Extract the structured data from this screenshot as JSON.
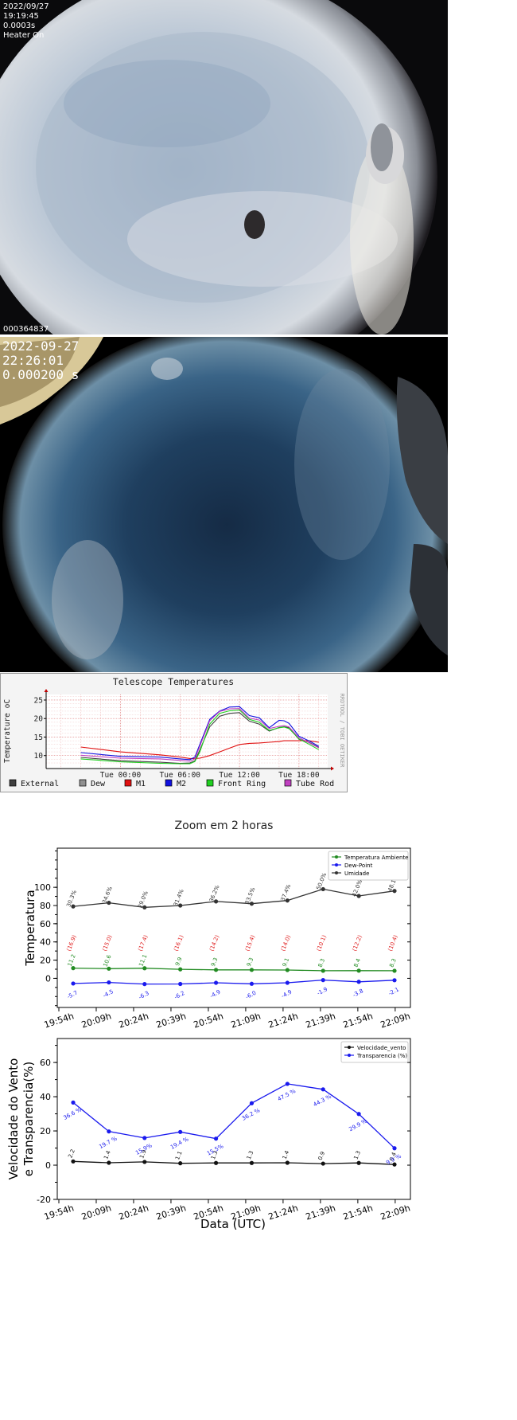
{
  "camera1": {
    "date": "2022/09/27",
    "time": "19:19:45",
    "exposure": "0.0003s",
    "status": "Heater On",
    "frame_id": "000364837"
  },
  "camera2": {
    "date": "2022-09-27",
    "time": "22:26:01",
    "exposure": "0.000200 s"
  },
  "chart_data": [
    {
      "type": "line",
      "title": "Telescope Temperatures",
      "ylabel": "Temperature oC",
      "side_text": "RRDTOOL / TOBI OETIKER",
      "xticks": [
        "Tue 00:00",
        "Tue 06:00",
        "Tue 12:00",
        "Tue 18:00"
      ],
      "yticks": [
        10,
        15,
        20,
        25
      ],
      "ylim": [
        6.5,
        26.5
      ],
      "x_hours": [
        -4,
        0,
        4,
        6,
        7,
        7.5,
        8,
        9,
        10,
        11,
        12,
        13,
        14,
        15,
        16,
        16.5,
        17,
        18,
        19,
        20
      ],
      "series": [
        {
          "name": "External",
          "color": "#404040",
          "values": [
            9.5,
            8.6,
            8.2,
            7.9,
            8.0,
            8.6,
            11.5,
            17.8,
            20.6,
            21.4,
            21.6,
            19.3,
            18.5,
            16.6,
            17.6,
            17.8,
            17.5,
            14.4,
            13.6,
            12.2
          ]
        },
        {
          "name": "Dew",
          "color": "#909090",
          "values": [
            null,
            null,
            null,
            null,
            null,
            null,
            null,
            null,
            null,
            null,
            null,
            null,
            null,
            null,
            null,
            null,
            null,
            null,
            null,
            null
          ]
        },
        {
          "name": "M1",
          "color": "#e01010",
          "values": [
            12.3,
            11.0,
            10.2,
            9.6,
            9.2,
            9.2,
            9.3,
            10.0,
            11.0,
            12.0,
            13.0,
            13.3,
            13.4,
            13.6,
            13.8,
            14.0,
            14.0,
            14.0,
            14.0,
            13.6
          ]
        },
        {
          "name": "M2",
          "color": "#1010e0",
          "values": [
            10.8,
            9.8,
            9.6,
            9.1,
            8.9,
            9.6,
            13.0,
            19.8,
            22.0,
            23.1,
            23.2,
            20.8,
            20.2,
            17.5,
            19.5,
            19.4,
            18.7,
            15.2,
            14.0,
            12.5
          ]
        },
        {
          "name": "Front Ring",
          "color": "#20d020",
          "values": [
            9.1,
            8.3,
            7.9,
            7.8,
            7.8,
            8.4,
            11.0,
            18.5,
            21.4,
            22.1,
            22.3,
            19.8,
            19.0,
            16.8,
            17.5,
            17.7,
            17.3,
            14.5,
            13.1,
            11.6
          ]
        },
        {
          "name": "Tube Rod",
          "color": "#c040c0",
          "values": [
            10.1,
            9.3,
            9.1,
            8.7,
            8.5,
            9.1,
            12.5,
            19.4,
            21.9,
            22.6,
            22.7,
            20.1,
            19.6,
            17.3,
            17.9,
            18.1,
            17.7,
            14.8,
            13.5,
            12.1
          ]
        }
      ]
    },
    {
      "type": "line",
      "title": "Zoom em 2 horas",
      "ylabel": "Temperatura",
      "categories": [
        "19:54h",
        "20:09h",
        "20:24h",
        "20:39h",
        "20:54h",
        "21:09h",
        "21:24h",
        "21:39h",
        "21:54h",
        "22:09h"
      ],
      "x": [
        "19:59h",
        "20:14h",
        "20:29h",
        "20:44h",
        "20:59h",
        "21:14h",
        "21:29h",
        "21:44h",
        "21:59h",
        "22:14h"
      ],
      "ylim": [
        -32,
        143
      ],
      "yticks": [
        0,
        20,
        40,
        60,
        80,
        100
      ],
      "legend": "top-right",
      "series": [
        {
          "name": "Temperatura Ambiente",
          "color": "#228b22",
          "values": [
            11.2,
            10.6,
            11.1,
            9.9,
            9.3,
            9.3,
            9.1,
            8.3,
            8.4,
            8.3
          ],
          "labels": [
            "11.2",
            "10.6",
            "11.1",
            "9.9",
            "9.3",
            "9.3",
            "9.1",
            "8.3",
            "8.4",
            "8.3"
          ]
        },
        {
          "name": "Dew-Point",
          "color": "#1a1aee",
          "values": [
            -5.7,
            -4.5,
            -6.3,
            -6.2,
            -4.9,
            -6.0,
            -4.9,
            -1.9,
            -3.8,
            -2.1
          ],
          "labels": [
            "-5.7",
            "-4.5",
            "-6.3",
            "-6.2",
            "-4.9",
            "-6.0",
            "-4.9",
            "-1.9",
            "-3.8",
            "-2.1"
          ]
        },
        {
          "name": "Umidade",
          "color": "#333333",
          "values": [
            79,
            83,
            78,
            80,
            84.5,
            82,
            85.5,
            98,
            90.5,
            96
          ],
          "labels": [
            "30.3%",
            "34.6%",
            "29.0%",
            "31.4%",
            "36.2%",
            "33.5%",
            "37.4%",
            "50.0%",
            "42.0%",
            "48.1%"
          ]
        }
      ],
      "spread_labels": {
        "color": "#e02020",
        "y": 38,
        "labels": [
          "(16.9)",
          "(15.0)",
          "(17.4)",
          "(16.1)",
          "(14.2)",
          "(15.4)",
          "(14.0)",
          "(10.1)",
          "(12.2)",
          "(10.4)"
        ]
      }
    },
    {
      "type": "line",
      "xlabel": "Data (UTC)",
      "ylabel": "Velocidade do Vento\ne Transparencia(%)",
      "categories": [
        "19:54h",
        "20:09h",
        "20:24h",
        "20:39h",
        "20:54h",
        "21:09h",
        "21:24h",
        "21:39h",
        "21:54h",
        "22:09h"
      ],
      "x": [
        "19:59h",
        "20:14h",
        "20:29h",
        "20:44h",
        "20:59h",
        "21:14h",
        "21:29h",
        "21:44h",
        "21:59h",
        "22:14h"
      ],
      "ylim": [
        -20,
        74
      ],
      "yticks": [
        -20,
        0,
        20,
        40,
        60
      ],
      "legend": "top-right",
      "series": [
        {
          "name": "Velocidade_vento",
          "color": "#111111",
          "values": [
            2.2,
            1.4,
            1.9,
            1.1,
            1.3,
            1.3,
            1.4,
            0.9,
            1.3,
            0.4
          ],
          "labels": [
            "2.2",
            "1.4",
            "1.9",
            "1.1",
            "1.3",
            "1.3",
            "1.4",
            "0.9",
            "1.3",
            "0.4"
          ]
        },
        {
          "name": "Transparencia (%)",
          "color": "#1a1aee",
          "values": [
            36.6,
            19.7,
            15.9,
            19.4,
            15.5,
            36.2,
            47.5,
            44.3,
            29.9,
            9.9
          ],
          "labels": [
            "36.6 %",
            "19.7 %",
            "15.9%",
            "19.4 %",
            "15.5%",
            "36.2 %",
            "47.5 %",
            "44.3 %",
            "29.9 %",
            "9.9 %"
          ]
        }
      ]
    }
  ]
}
